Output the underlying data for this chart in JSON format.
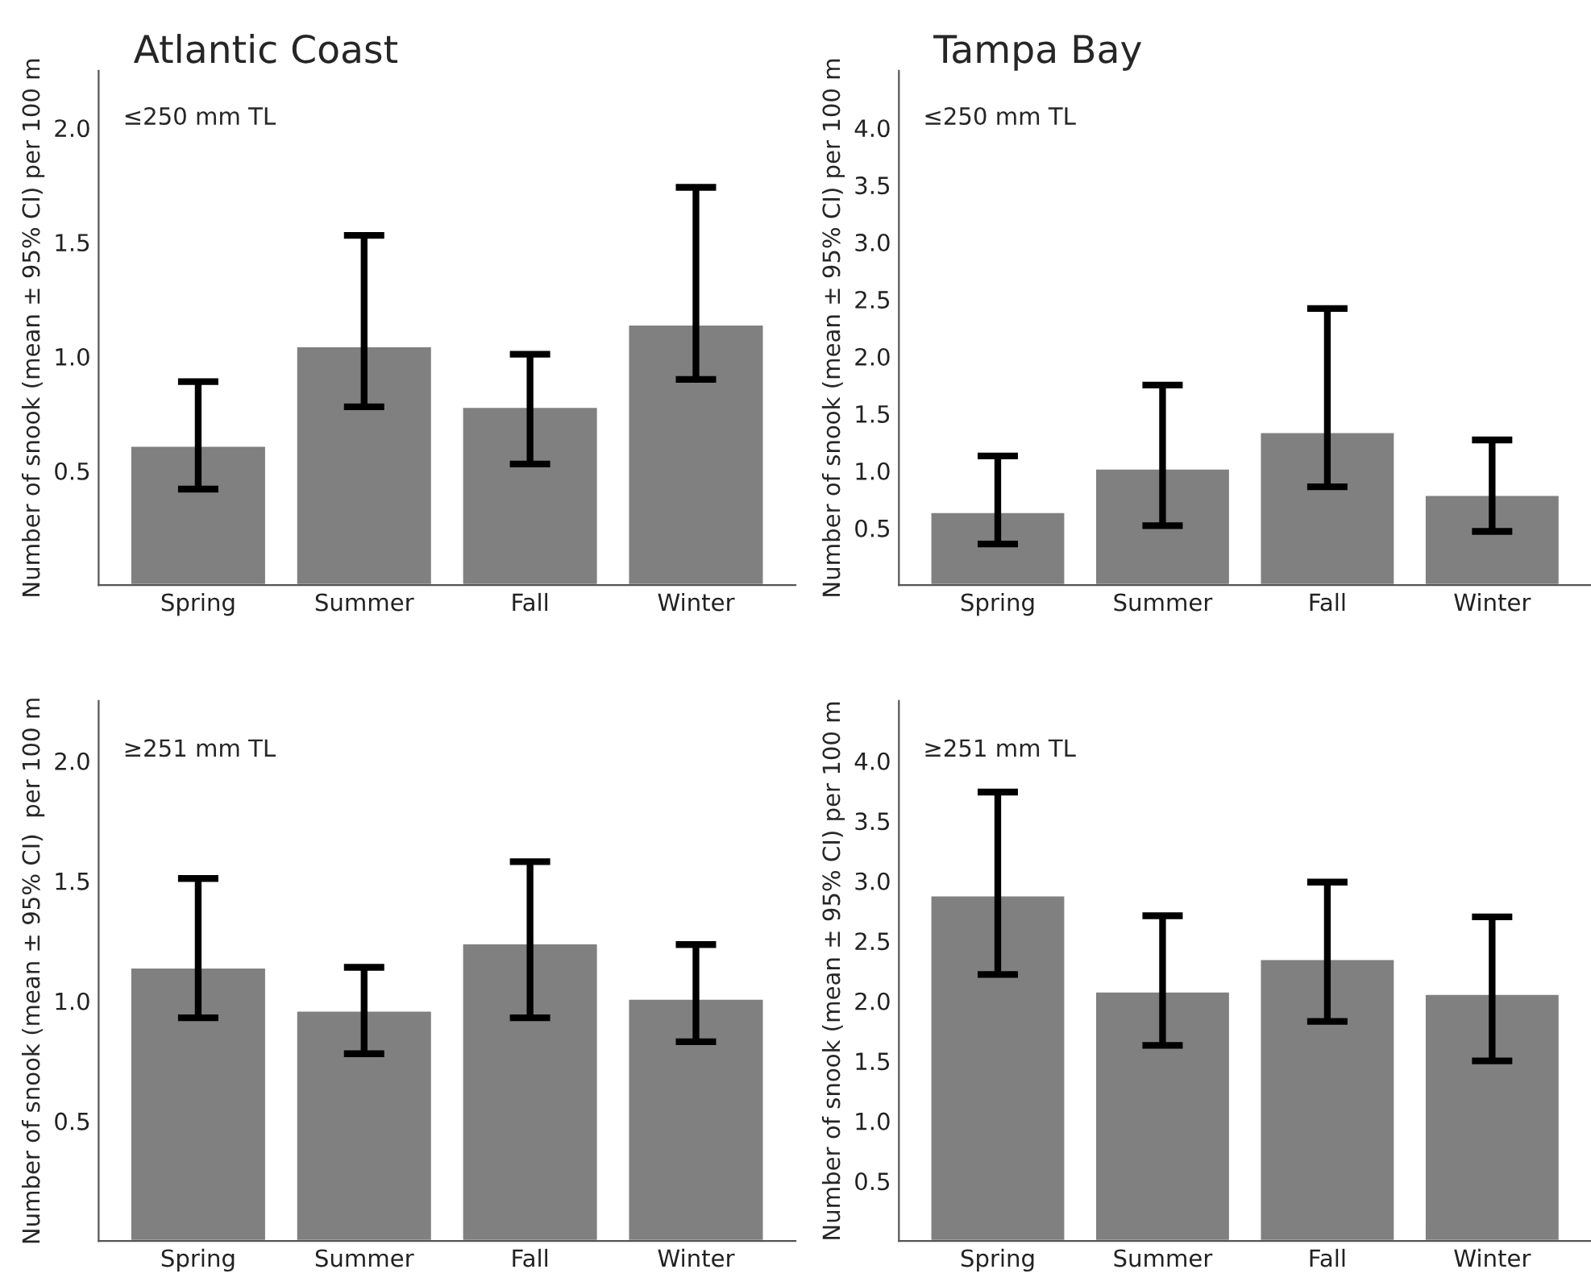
{
  "chart_data": [
    {
      "type": "bar",
      "title": "Atlantic Coast",
      "ylabel": "Number of snook (mean ± 95% CI) per 100 m",
      "annotations": [
        "≤250 mm TL"
      ],
      "categories": [
        "Spring",
        "Summer",
        "Fall",
        "Winter"
      ],
      "values": [
        0.61,
        1.045,
        0.78,
        1.14
      ],
      "errors": [
        [
          0.42,
          0.89
        ],
        [
          0.78,
          1.53
        ],
        [
          0.53,
          1.01
        ],
        [
          0.9,
          1.74
        ]
      ],
      "color": "#808080",
      "ylim": [
        0,
        2.25
      ],
      "yticks": [
        0.5,
        {
          "value": 1,
          "label": "1.0"
        },
        1.5,
        {
          "value": 2,
          "label": "2.0"
        }
      ],
      "grid": false,
      "legend": false
    },
    {
      "type": "bar",
      "title": "Tampa Bay",
      "ylabel": "Number of snook (mean ± 95% CI) per 100 m",
      "annotations": [
        "≤250 mm TL"
      ],
      "categories": [
        "Spring",
        "Summer",
        "Fall",
        "Winter"
      ],
      "values": [
        0.64,
        1.02,
        1.34,
        0.79
      ],
      "errors": [
        [
          0.36,
          1.13
        ],
        [
          0.52,
          1.75
        ],
        [
          0.86,
          2.42
        ],
        [
          0.47,
          1.27
        ]
      ],
      "color": "#808080",
      "ylim": [
        0,
        4.5
      ],
      "yticks": [
        0.5,
        {
          "value": 1,
          "label": "1.0"
        },
        1.5,
        {
          "value": 2,
          "label": "2.0"
        },
        2.5,
        {
          "value": 3,
          "label": "3.0"
        },
        3.5,
        {
          "value": 4,
          "label": "4.0"
        }
      ],
      "grid": false,
      "legend": false
    },
    {
      "type": "bar",
      "ylabel": "Number of snook (mean ± 95% CI)  per 100 m",
      "annotations": [
        "≥251 mm TL"
      ],
      "categories": [
        "Spring",
        "Summer",
        "Fall",
        "Winter"
      ],
      "values": [
        1.14,
        0.96,
        1.24,
        1.01
      ],
      "errors": [
        [
          0.93,
          1.51
        ],
        [
          0.78,
          1.14
        ],
        [
          0.93,
          1.58
        ],
        [
          0.83,
          1.235
        ]
      ],
      "color": "#808080",
      "ylim": [
        0,
        2.25
      ],
      "yticks": [
        0.5,
        {
          "value": 1,
          "label": "1.0"
        },
        1.5,
        {
          "value": 2,
          "label": "2.0"
        }
      ],
      "grid": false,
      "legend": false
    },
    {
      "type": "bar",
      "ylabel": "Number of snook (mean ± 95% CI) per 100 m",
      "annotations": [
        "≥251 mm TL"
      ],
      "categories": [
        "Spring",
        "Summer",
        "Fall",
        "Winter"
      ],
      "values": [
        2.88,
        2.08,
        2.35,
        2.06
      ],
      "errors": [
        [
          2.22,
          3.74
        ],
        [
          1.63,
          2.71
        ],
        [
          1.83,
          2.99
        ],
        [
          1.5,
          2.7
        ]
      ],
      "color": "#808080",
      "ylim": [
        0,
        4.5
      ],
      "yticks": [
        0.5,
        {
          "value": 1,
          "label": "1.0"
        },
        1.5,
        {
          "value": 2,
          "label": "2.0"
        },
        2.5,
        {
          "value": 3,
          "label": "3.0"
        },
        3.5,
        {
          "value": 4,
          "label": "4.0"
        }
      ],
      "grid": false,
      "legend": false
    }
  ]
}
